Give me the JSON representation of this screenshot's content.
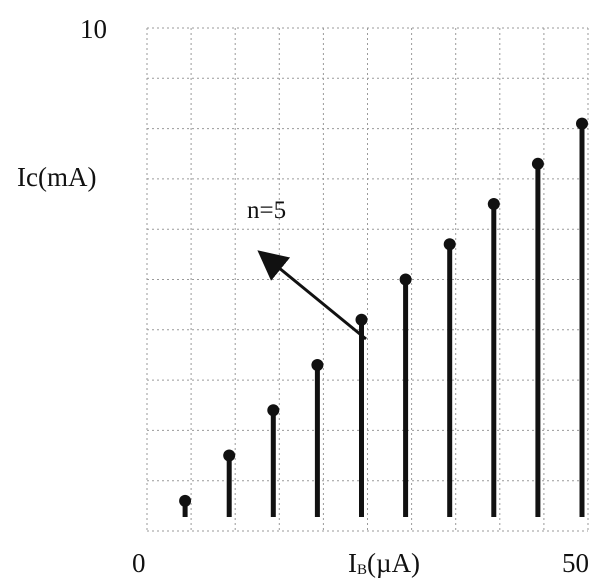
{
  "chart_data": {
    "type": "stem",
    "title": "",
    "xlabel": "I",
    "xlabel_sub": "B",
    "xlabel_unit": "(µA)",
    "ylabel": "Ic(mA)",
    "xlim": [
      0,
      50
    ],
    "ylim": [
      0,
      10
    ],
    "x_tick_labels": [
      "0",
      "50"
    ],
    "y_tick_labels": [
      "10"
    ],
    "grid": true,
    "x": [
      5,
      10,
      15,
      20,
      25,
      30,
      35,
      40,
      45,
      50
    ],
    "values": [
      0.6,
      1.5,
      2.4,
      3.3,
      4.2,
      5.0,
      5.7,
      6.5,
      7.3,
      8.1
    ],
    "annotation": {
      "text": "n=5",
      "points_to_index": 4
    },
    "colors": {
      "marks": "#111111",
      "grid": "#9a9a9a"
    }
  }
}
